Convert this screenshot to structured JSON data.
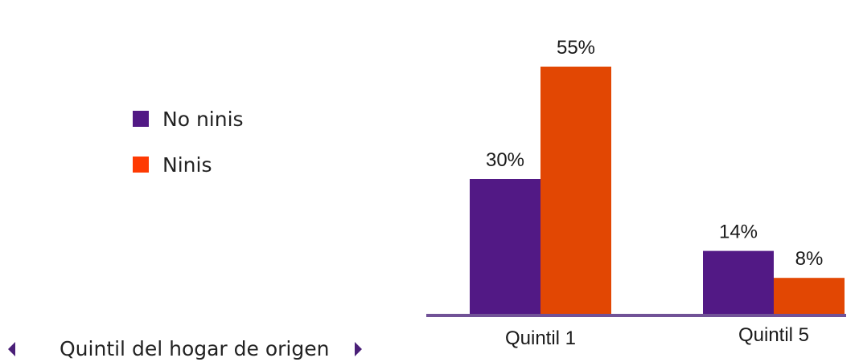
{
  "chart_data": {
    "type": "bar",
    "categories": [
      "Quintil 1",
      "Quintil 5"
    ],
    "series": [
      {
        "name": "No ninis",
        "values": [
          30,
          14
        ],
        "labels": [
          "30%",
          "14%"
        ],
        "color": "#521985"
      },
      {
        "name": "Ninis",
        "values": [
          55,
          8
        ],
        "labels": [
          "55%",
          "8%"
        ],
        "color": "#e24703"
      }
    ],
    "ylim": [
      0,
      60
    ],
    "grid": false,
    "legend_position": "left"
  },
  "legend": {
    "items": [
      {
        "label": "No ninis",
        "color": "#521985"
      },
      {
        "label": "Ninis",
        "color": "#fe3a03"
      }
    ]
  },
  "caption": {
    "text": "Quintil del hogar de origen"
  },
  "colors": {
    "axis": "#715297",
    "arrow": "#4a1f78"
  }
}
